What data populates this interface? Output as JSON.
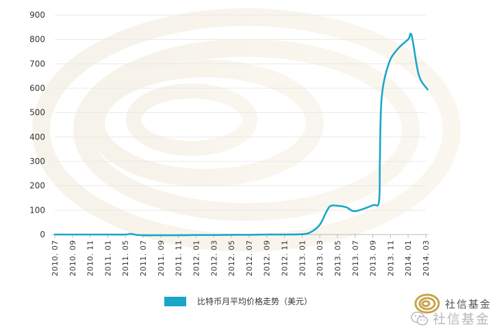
{
  "chart_data": {
    "type": "line",
    "title": "",
    "xlabel": "",
    "ylabel": "",
    "ylim": [
      0,
      900
    ],
    "yticks": [
      0,
      100,
      200,
      300,
      400,
      500,
      600,
      700,
      800,
      900
    ],
    "grid": true,
    "legend_position": "bottom",
    "categories": [
      "2010.07",
      "2010.09",
      "2010.11",
      "2011.01",
      "2011.05",
      "2011.07",
      "2011.09",
      "2011.11",
      "2012.01",
      "2012.03",
      "2012.05",
      "2012.07",
      "2012.09",
      "2012.11",
      "2013.01",
      "2013.03",
      "2013.05",
      "2013.07",
      "2013.09",
      "2013.11",
      "2014.01",
      "2014.03"
    ],
    "series": [
      {
        "name": "比特币月平均价格走势（美元）",
        "color": "#1aa6c9",
        "points": [
          {
            "x": 0,
            "y": 0
          },
          {
            "x": 1,
            "y": 0
          },
          {
            "x": 2,
            "y": 0
          },
          {
            "x": 3,
            "y": 0
          },
          {
            "x": 4,
            "y": 0
          },
          {
            "x": 4.3,
            "y": 3
          },
          {
            "x": 4.6,
            "y": -1
          },
          {
            "x": 5,
            "y": -3
          },
          {
            "x": 6,
            "y": -3
          },
          {
            "x": 7,
            "y": -3
          },
          {
            "x": 8,
            "y": -2
          },
          {
            "x": 9,
            "y": -2
          },
          {
            "x": 10,
            "y": -1
          },
          {
            "x": 11,
            "y": -1
          },
          {
            "x": 12,
            "y": 0
          },
          {
            "x": 13,
            "y": 0
          },
          {
            "x": 14,
            "y": 1
          },
          {
            "x": 14.5,
            "y": 10
          },
          {
            "x": 15,
            "y": 40
          },
          {
            "x": 15.35,
            "y": 90
          },
          {
            "x": 15.6,
            "y": 117
          },
          {
            "x": 16,
            "y": 118
          },
          {
            "x": 16.5,
            "y": 112
          },
          {
            "x": 17,
            "y": 96
          },
          {
            "x": 18,
            "y": 120
          },
          {
            "x": 18.35,
            "y": 135
          },
          {
            "x": 18.4,
            "y": 300
          },
          {
            "x": 18.5,
            "y": 560
          },
          {
            "x": 18.9,
            "y": 700
          },
          {
            "x": 19.4,
            "y": 760
          },
          {
            "x": 20,
            "y": 800
          },
          {
            "x": 20.2,
            "y": 815
          },
          {
            "x": 20.6,
            "y": 655
          },
          {
            "x": 21.1,
            "y": 595
          }
        ]
      }
    ]
  },
  "brand": {
    "name": "社信基金",
    "watermark": "社信基金",
    "accent_color": "#c9a24a"
  }
}
